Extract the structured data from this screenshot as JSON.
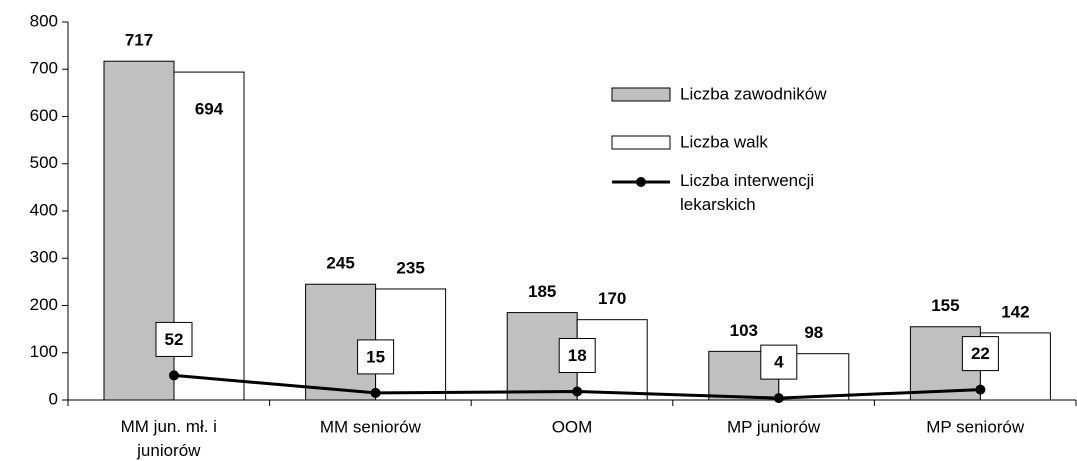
{
  "chart_data": {
    "type": "bar",
    "categories": [
      "MM jun. mł. i juniorów",
      "MM seniorów",
      "OOM",
      "MP juniorów",
      "MP seniorów"
    ],
    "series": [
      {
        "name": "Liczba zawodników",
        "color": "#c0c0c0",
        "values": [
          717,
          245,
          185,
          103,
          155
        ]
      },
      {
        "name": "Liczba walk",
        "color": "#ffffff",
        "values": [
          694,
          235,
          170,
          98,
          142
        ]
      },
      {
        "name": "Liczba interwencji lekarskich",
        "type": "line",
        "color": "#000000",
        "values": [
          52,
          15,
          18,
          4,
          22
        ]
      }
    ],
    "ylim": [
      0,
      800
    ],
    "yticks": [
      0,
      100,
      200,
      300,
      400,
      500,
      600,
      700,
      800
    ],
    "legend": "right",
    "grid": false
  }
}
